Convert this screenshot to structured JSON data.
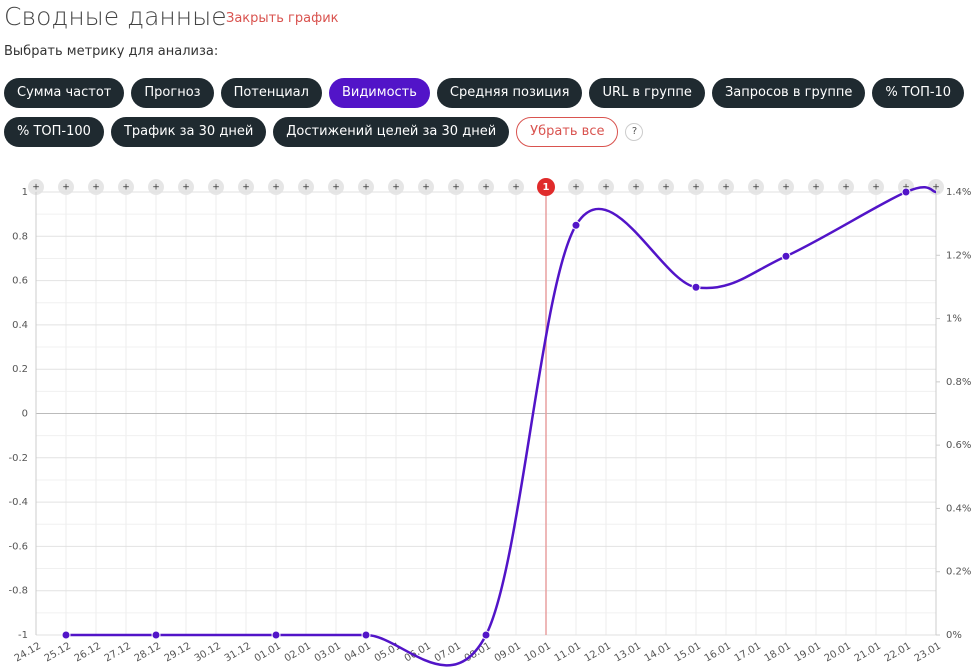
{
  "header": {
    "title": "Сводные данные",
    "close_link": "Закрыть график",
    "subtitle": "Выбрать метрику для анализа:"
  },
  "button_rows": [
    [
      {
        "label": "Сумма частот",
        "active": false
      },
      {
        "label": "Прогноз",
        "active": false
      },
      {
        "label": "Потенциал",
        "active": false
      },
      {
        "label": "Видимость",
        "active": true
      },
      {
        "label": "Средняя позиция",
        "active": false
      },
      {
        "label": "URL в группе",
        "active": false
      },
      {
        "label": "Запросов в группе",
        "active": false
      },
      {
        "label": "% ТОП-10",
        "active": false
      }
    ],
    [
      {
        "label": "% ТОП-100",
        "active": false
      },
      {
        "label": "Трафик за 30 дней",
        "active": false
      },
      {
        "label": "Достижений целей за 30 дней",
        "active": false
      }
    ]
  ],
  "clear_button": "Убрать все",
  "help_button": "?",
  "chart_data": {
    "type": "line",
    "categories": [
      "24.12",
      "25.12",
      "26.12",
      "27.12",
      "28.12",
      "29.12",
      "30.12",
      "31.12",
      "01.01",
      "02.01",
      "03.01",
      "04.01",
      "05.01",
      "06.01",
      "07.01",
      "08.01",
      "09.01",
      "10.01",
      "11.01",
      "12.01",
      "13.01",
      "14.01",
      "15.01",
      "16.01",
      "17.01",
      "18.01",
      "19.01",
      "20.01",
      "21.01",
      "22.01",
      "23.01"
    ],
    "x": [
      "25.12",
      "28.12",
      "01.01",
      "04.01",
      "08.01",
      "11.01",
      "15.01",
      "18.01",
      "22.01",
      "23.01"
    ],
    "values": [
      -1,
      -1,
      -1,
      -1,
      -1,
      0.85,
      0.57,
      0.71,
      1,
      1
    ],
    "color": "#5214c8",
    "ylim": [
      -1,
      1
    ],
    "yticks": [
      -1.0,
      -0.8,
      -0.6,
      -0.4,
      -0.2,
      0,
      0.2,
      0.4,
      0.6,
      0.8,
      1.0
    ],
    "y2lim": [
      0,
      1.4
    ],
    "y2ticks": [
      {
        "value": 0,
        "label": "0%"
      },
      {
        "value": 0.2,
        "label": "0.2%"
      },
      {
        "value": 0.4,
        "label": "0.4%"
      },
      {
        "value": 0.6,
        "label": "0.6%"
      },
      {
        "value": 0.8,
        "label": "0.8%"
      },
      {
        "value": 1,
        "label": "1%"
      },
      {
        "value": 1.2,
        "label": "1.2%"
      },
      {
        "value": 1.4,
        "label": "1.4%"
      }
    ],
    "add_marker": "+",
    "annotation": {
      "date": "10.01",
      "label": "1"
    },
    "grid": true
  }
}
